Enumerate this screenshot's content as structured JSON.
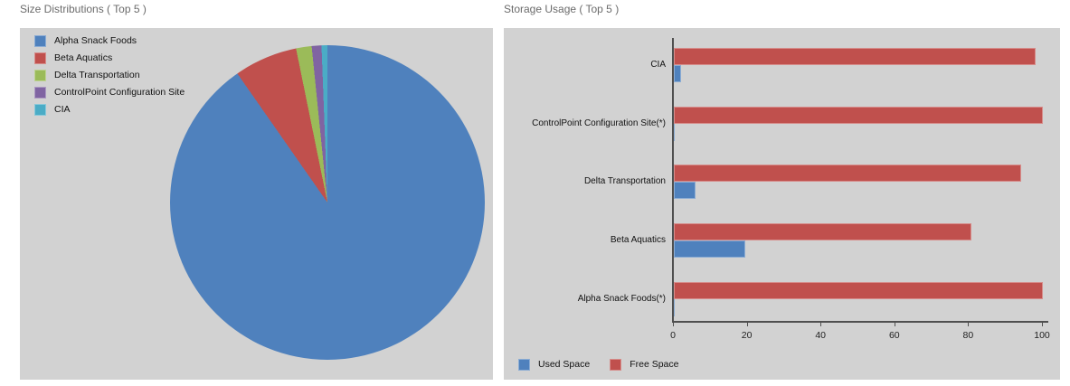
{
  "page": {
    "pie_title": "Size Distributions ( Top 5 )",
    "bar_title": "Storage Usage ( Top 5 )"
  },
  "colors": {
    "panel_bg": "#d2d2d2",
    "axis": "#4f4f4f",
    "title_text": "#6b6b6b",
    "blue": "#4F81BD",
    "red": "#C0504D",
    "green": "#9BBB59",
    "purple": "#8064A2",
    "cyan": "#4BACC6"
  },
  "chart_data": [
    {
      "type": "pie",
      "title": "Size Distributions ( Top 5 )",
      "labels": [
        "Alpha Snack Foods",
        "Beta Aquatics",
        "Delta Transportation",
        "ControlPoint Configuration Site",
        "CIA"
      ],
      "values": [
        90.3,
        6.5,
        1.6,
        1.0,
        0.6
      ],
      "unit": "percent-of-circle",
      "colors": [
        "#4F81BD",
        "#C0504D",
        "#9BBB59",
        "#8064A2",
        "#4BACC6"
      ],
      "start_angle_deg": 0,
      "direction": "clockwise",
      "legend_position": "top-left",
      "grid": false
    },
    {
      "type": "bar",
      "orientation": "horizontal",
      "title": "Storage Usage ( Top 5 )",
      "categories": [
        "CIA",
        "ControlPoint Configuration Site(*)",
        "Delta Transportation",
        "Beta Aquatics",
        "Alpha Snack Foods(*)"
      ],
      "series": [
        {
          "name": "Used Space",
          "color": "#4F81BD",
          "values": [
            2,
            0.3,
            6,
            19.4,
            0.3
          ]
        },
        {
          "name": "Free Space",
          "color": "#C0504D",
          "values": [
            98,
            100,
            94,
            80.6,
            100
          ]
        }
      ],
      "bar_order_per_category": [
        "Free Space",
        "Used Space"
      ],
      "xlim": [
        0,
        100
      ],
      "x_ticks": [
        0,
        20,
        40,
        60,
        80,
        100
      ],
      "legend_position": "bottom-left",
      "grid": false
    }
  ]
}
